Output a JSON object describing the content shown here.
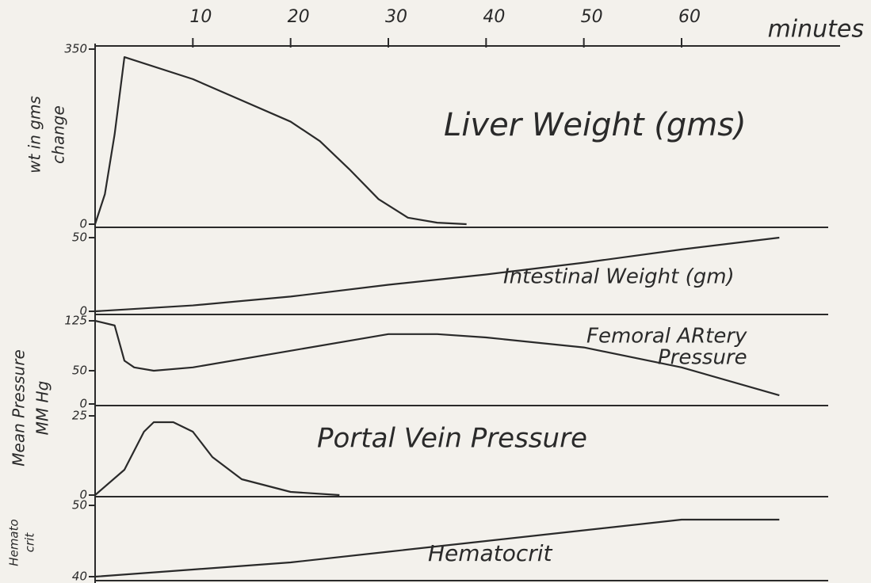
{
  "chart_data": [
    {
      "type": "line",
      "title": [
        "Liver Weight (gms)"
      ],
      "ylabel": [
        "wt in gms",
        "change"
      ],
      "xlabel": "minutes",
      "xlim": [
        0,
        75
      ],
      "xticks": [
        10,
        20,
        30,
        40,
        50,
        60
      ],
      "ylim": [
        0,
        350
      ],
      "yticks": [
        350,
        0
      ],
      "color": "#2a2a2a",
      "x": [
        0,
        1,
        2,
        3,
        10,
        20,
        23,
        26,
        29,
        32,
        35,
        38
      ],
      "values": [
        0,
        60,
        180,
        334,
        290,
        205,
        166,
        110,
        50,
        13,
        3,
        0
      ]
    },
    {
      "type": "line",
      "title": [
        "Intestinal Weight (gm)"
      ],
      "xlim": [
        0,
        75
      ],
      "ylim": [
        0,
        50
      ],
      "yticks": [
        50,
        0
      ],
      "color": "#2a2a2a",
      "x": [
        0,
        10,
        20,
        30,
        40,
        50,
        60,
        70
      ],
      "values": [
        0,
        4,
        10,
        18,
        25,
        33,
        42,
        50
      ]
    },
    {
      "type": "line",
      "title": [
        "Femoral ARtery",
        "Pressure"
      ],
      "ylabel": [
        "Mean Pressure",
        "MM Hg"
      ],
      "xlim": [
        0,
        75
      ],
      "ylim": [
        0,
        125
      ],
      "yticks": [
        125,
        50,
        0
      ],
      "color": "#2a2a2a",
      "x": [
        0,
        2,
        3,
        4,
        6,
        10,
        20,
        30,
        35,
        40,
        50,
        60,
        70
      ],
      "values": [
        125,
        118,
        65,
        55,
        50,
        55,
        80,
        105,
        105,
        100,
        85,
        55,
        13
      ]
    },
    {
      "type": "line",
      "title": [
        "Portal Vein Pressure"
      ],
      "xlim": [
        0,
        75
      ],
      "ylim": [
        0,
        25
      ],
      "yticks": [
        25,
        0
      ],
      "color": "#2a2a2a",
      "x": [
        0,
        3,
        5,
        6,
        8,
        10,
        12,
        15,
        20,
        25
      ],
      "values": [
        0,
        8,
        20,
        23,
        23,
        20,
        12,
        5,
        1,
        0
      ]
    },
    {
      "type": "line",
      "title": [
        "Hematocrit"
      ],
      "ylabel": [
        "Hemato",
        "crit"
      ],
      "xlim": [
        0,
        75
      ],
      "ylim": [
        40,
        50
      ],
      "yticks": [
        50,
        40
      ],
      "color": "#2a2a2a",
      "x": [
        0,
        10,
        20,
        30,
        40,
        50,
        60,
        70
      ],
      "values": [
        40,
        41,
        42,
        43.5,
        45,
        46.5,
        48,
        48
      ]
    }
  ]
}
